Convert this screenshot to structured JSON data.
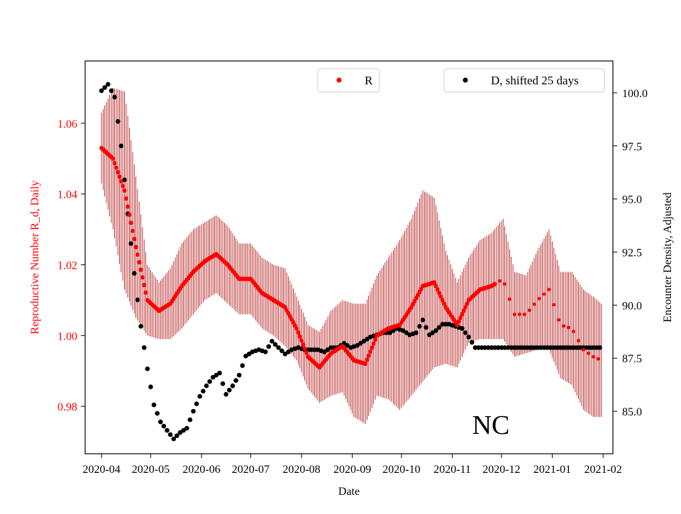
{
  "chart_data": {
    "type": "scatter",
    "title": "",
    "annotation": "NC",
    "xlabel": "Date",
    "ylabel_left": "Reproductive Number R_d, Daily",
    "ylabel_right": "Encounter Density, Adjusted",
    "x_ticks": [
      "2020-04",
      "2020-05",
      "2020-06",
      "2020-07",
      "2020-08",
      "2020-09",
      "2020-10",
      "2020-11",
      "2020-12",
      "2021-01",
      "2021-02"
    ],
    "y_left_ticks": [
      "0.98",
      "1.00",
      "1.02",
      "1.04",
      "1.06"
    ],
    "y_left_tick_values": [
      0.98,
      1.0,
      1.02,
      1.04,
      1.06
    ],
    "y_left_range": [
      0.9666,
      1.0776
    ],
    "y_right_ticks": [
      "85.0",
      "87.5",
      "90.0",
      "92.5",
      "95.0",
      "97.5",
      "100.0"
    ],
    "y_right_tick_values": [
      85.0,
      87.5,
      90.0,
      92.5,
      95.0,
      97.5,
      100.0
    ],
    "y_right_range": [
      83.0,
      101.5
    ],
    "x_range_days": [
      -10,
      312
    ],
    "x_tick_days": [
      0,
      30,
      61,
      91,
      122,
      153,
      183,
      214,
      244,
      275,
      306
    ],
    "legend": [
      {
        "label": "R",
        "color": "#ff0000",
        "position": "top-center"
      },
      {
        "label": "D, shifted 25 days",
        "color": "#000000",
        "position": "top-right"
      }
    ],
    "colors": {
      "r_series": "#ff0000",
      "error_bars": "#aa0000",
      "d_series": "#000000",
      "left_axis": "#ff0000"
    },
    "series": [
      {
        "name": "R",
        "axis": "left",
        "x_days": [
          0,
          7,
          14,
          21,
          28,
          35,
          42,
          49,
          56,
          63,
          70,
          77,
          84,
          91,
          98,
          105,
          112,
          119,
          126,
          133,
          140,
          147,
          154,
          161,
          168,
          175,
          182,
          189,
          196,
          203,
          210,
          217,
          224,
          231,
          238,
          245,
          252,
          259,
          266,
          273,
          280,
          287,
          294,
          300,
          305
        ],
        "values": [
          1.053,
          1.05,
          1.041,
          1.025,
          1.01,
          1.007,
          1.009,
          1.014,
          1.018,
          1.021,
          1.023,
          1.02,
          1.016,
          1.016,
          1.012,
          1.01,
          1.008,
          1.002,
          0.994,
          0.991,
          0.995,
          0.997,
          0.993,
          0.992,
          1.0,
          1.002,
          1.003,
          1.008,
          1.014,
          1.015,
          1.008,
          1.003,
          1.01,
          1.013,
          1.014,
          1.016,
          1.006,
          1.006,
          1.01,
          1.013,
          1.003,
          1.002,
          0.996,
          0.994,
          0.993
        ],
        "error": [
          0.01,
          0.02,
          0.028,
          0.02,
          0.01,
          0.008,
          0.01,
          0.012,
          0.012,
          0.011,
          0.011,
          0.011,
          0.01,
          0.01,
          0.01,
          0.01,
          0.011,
          0.009,
          0.009,
          0.01,
          0.012,
          0.013,
          0.016,
          0.017,
          0.017,
          0.02,
          0.024,
          0.025,
          0.027,
          0.024,
          0.016,
          0.012,
          0.012,
          0.014,
          0.015,
          0.017,
          0.012,
          0.011,
          0.014,
          0.017,
          0.015,
          0.016,
          0.017,
          0.017,
          0.016
        ]
      },
      {
        "name": "D, shifted 25 days",
        "axis": "right",
        "x_days": [
          0,
          4,
          8,
          12,
          16,
          20,
          24,
          28,
          32,
          36,
          40,
          44,
          48,
          52,
          56,
          60,
          64,
          68,
          72,
          76,
          80,
          84,
          88,
          92,
          96,
          100,
          104,
          108,
          112,
          116,
          120,
          124,
          128,
          132,
          136,
          140,
          144,
          148,
          152,
          156,
          160,
          164,
          168,
          172,
          176,
          180,
          184,
          188,
          192,
          196,
          200,
          204,
          208,
          212,
          216,
          220,
          224,
          228,
          232,
          236,
          240,
          244,
          248,
          252,
          256,
          260,
          264,
          268,
          272,
          276,
          280,
          284,
          288,
          292,
          296,
          300,
          305
        ],
        "values": [
          100.1,
          100.4,
          99.8,
          97.5,
          94.3,
          91.5,
          89.0,
          87.0,
          85.3,
          84.5,
          84.1,
          83.7,
          84.0,
          84.2,
          85.0,
          85.7,
          86.2,
          86.6,
          86.8,
          85.8,
          86.2,
          86.7,
          87.6,
          87.8,
          87.9,
          87.8,
          88.3,
          88.0,
          87.7,
          87.9,
          88.0,
          87.9,
          87.9,
          87.9,
          87.8,
          88.0,
          88.0,
          88.2,
          88.0,
          88.1,
          88.3,
          88.5,
          88.6,
          88.7,
          88.7,
          88.9,
          88.8,
          88.6,
          88.7,
          89.3,
          88.6,
          88.8,
          89.1,
          89.1,
          89.0,
          88.9,
          88.5,
          88.0,
          88.0,
          88.0,
          88.0,
          88.0,
          88.0,
          88.0,
          88.0,
          88.0,
          88.0,
          88.0,
          88.0,
          88.0,
          88.0,
          88.0,
          88.0,
          88.0,
          88.0,
          88.0,
          88.0
        ]
      }
    ]
  }
}
